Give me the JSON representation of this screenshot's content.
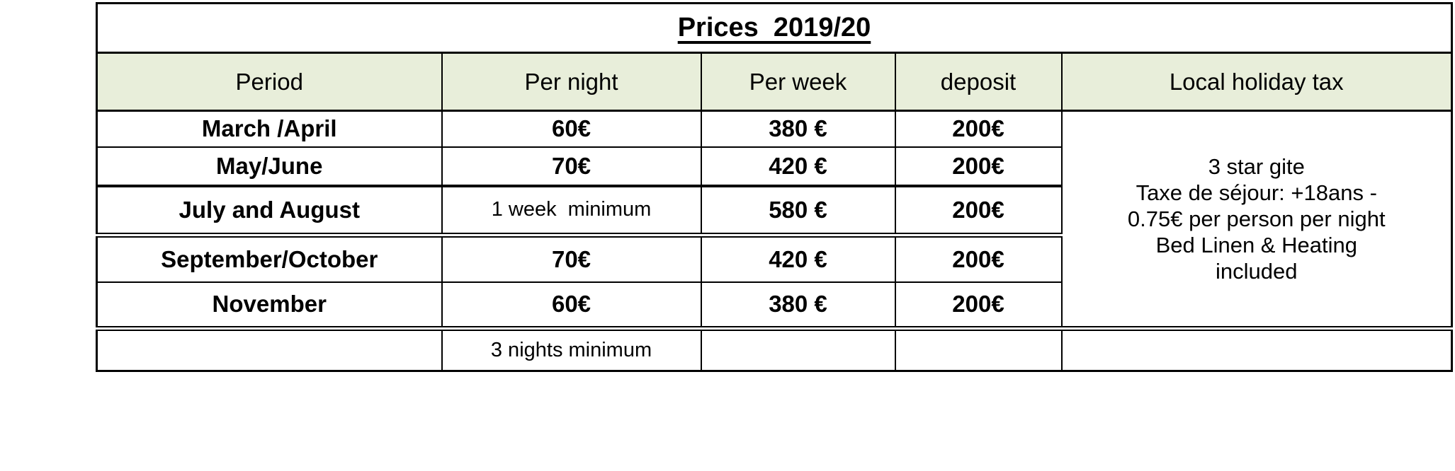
{
  "title": "Prices  2019/20",
  "colors": {
    "page_bg": "#ffffff",
    "header_bg": "#e8eeda",
    "border": "#000000",
    "text": "#000000"
  },
  "header": {
    "period": "Period",
    "per_night": "Per night",
    "per_week": "Per week",
    "deposit": "deposit",
    "tax": "Local holiday tax"
  },
  "rows": [
    {
      "period": "March /April",
      "per_night": "60€",
      "per_week": "380 €",
      "deposit": "200€"
    },
    {
      "period": "May/June",
      "per_night": "70€",
      "per_week": "420 €",
      "deposit": "200€"
    },
    {
      "period": "July and August",
      "per_night": "1 week  minimum",
      "per_week": "580 €",
      "deposit": "200€"
    },
    {
      "period": "September/October",
      "per_night": "70€",
      "per_week": "420 €",
      "deposit": "200€"
    },
    {
      "period": "November",
      "per_night": "60€",
      "per_week": "380 €",
      "deposit": "200€"
    }
  ],
  "holiday_tax_note": "3 star gite\nTaxe de séjour: +18ans -\n0.75€ per person per night\nBed Linen & Heating\nincluded",
  "footer": {
    "per_night": "3 nights minimum"
  }
}
